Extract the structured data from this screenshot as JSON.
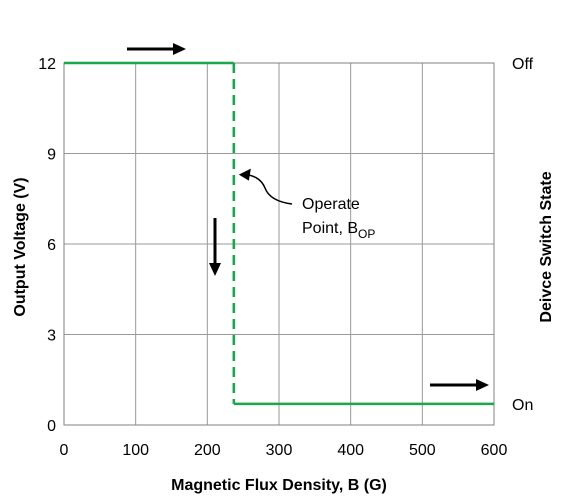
{
  "chart_data": {
    "type": "line",
    "xlabel": "Magnetic Flux Density, B (G)",
    "ylabel": "Output Voltage (V)",
    "y2label": "Deivce Switch State",
    "xlim": [
      0,
      600
    ],
    "ylim": [
      0,
      12
    ],
    "x_ticks": [
      0,
      100,
      200,
      300,
      400,
      500,
      600
    ],
    "y_ticks": [
      0,
      3,
      6,
      9,
      12
    ],
    "y2_ticks": [
      {
        "label": "Off",
        "y": 12
      },
      {
        "label": "On",
        "y": 0.7
      }
    ],
    "grid": true,
    "series": [
      {
        "color": "#1aa64a",
        "segments": [
          {
            "style": "solid",
            "points": [
              [
                0,
                12
              ],
              [
                237,
                12
              ]
            ]
          },
          {
            "style": "dashed",
            "points": [
              [
                237,
                12
              ],
              [
                237,
                0.7
              ]
            ]
          },
          {
            "style": "solid",
            "points": [
              [
                237,
                0.7
              ],
              [
                600,
                0.7
              ]
            ]
          }
        ]
      }
    ],
    "annotation": {
      "line1": "Operate",
      "line2_main": "Point, B",
      "line2_sub": "OP",
      "point": [
        237,
        8.3
      ]
    },
    "direction_arrows": [
      "right",
      "down",
      "right"
    ]
  }
}
